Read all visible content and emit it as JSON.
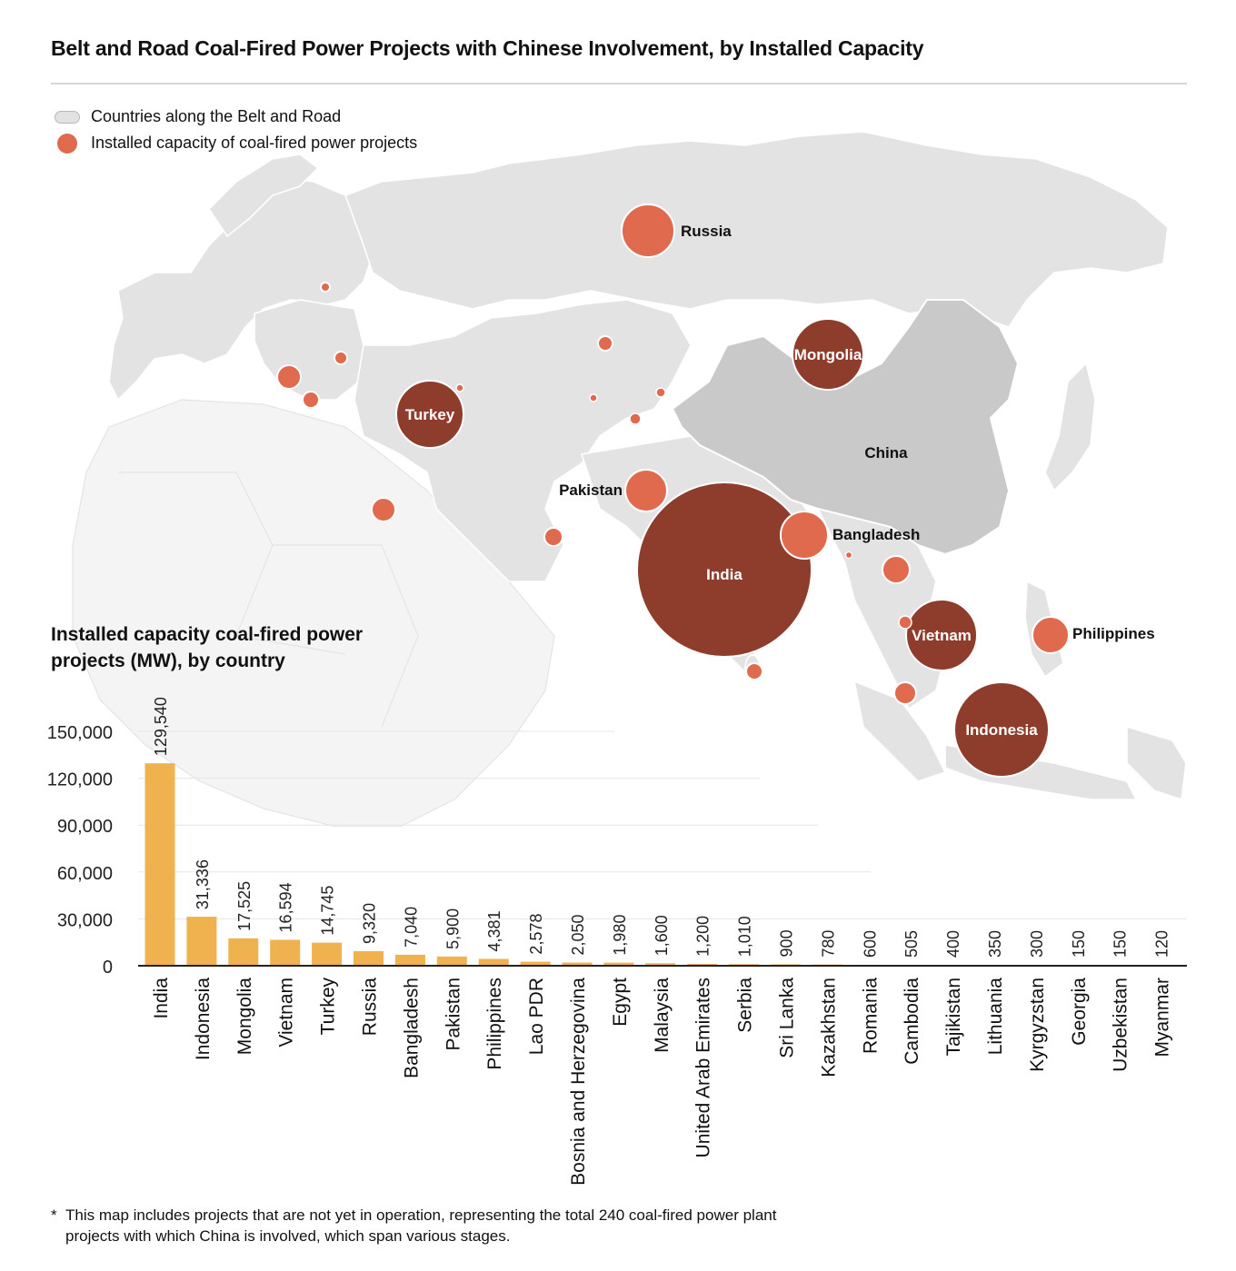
{
  "title": "Belt and Road Coal-Fired Power Projects with Chinese Involvement, by Installed Capacity",
  "legend": {
    "land": "Countries along the Belt and Road",
    "dot": "Installed capacity of coal-fired power projects"
  },
  "colors": {
    "small_bubble": "#e06a4e",
    "large_bubble": "#8e3d2c",
    "bar": "#efb24f",
    "land": "#e2e2e2",
    "china": "#c9c9ca"
  },
  "map_labels": {
    "russia": "Russia",
    "mongolia": "Mongolia",
    "turkey": "Turkey",
    "china": "China",
    "pakistan": "Pakistan",
    "india": "India",
    "bangladesh": "Bangladesh",
    "vietnam": "Vietnam",
    "philippines": "Philippines",
    "indonesia": "Indonesia"
  },
  "chart_heading": "Installed capacity coal-fired power projects (MW), by country",
  "chart_data": {
    "type": "bar",
    "title": "Installed capacity coal-fired power projects (MW), by country",
    "xlabel": "",
    "ylabel": "",
    "ylim": [
      0,
      150000
    ],
    "yticks": [
      0,
      30000,
      60000,
      90000,
      120000,
      150000
    ],
    "ytick_labels": [
      "0",
      "30,000",
      "60,000",
      "90,000",
      "120,000",
      "150,000"
    ],
    "categories": [
      "India",
      "Indonesia",
      "Mongolia",
      "Vietnam",
      "Turkey",
      "Russia",
      "Bangladesh",
      "Pakistan",
      "Philippines",
      "Lao PDR",
      "Bosnia and Herzegovina",
      "Egypt",
      "Malaysia",
      "United Arab Emirates",
      "Serbia",
      "Sri Lanka",
      "Kazakhstan",
      "Romania",
      "Cambodia",
      "Tajikistan",
      "Lithuania",
      "Kyrgyzstan",
      "Georgia",
      "Uzbekistan",
      "Myanmar"
    ],
    "values": [
      129540,
      31336,
      17525,
      16594,
      14745,
      9320,
      7040,
      5900,
      4381,
      2578,
      2050,
      1980,
      1600,
      1200,
      1010,
      900,
      780,
      600,
      505,
      400,
      350,
      300,
      150,
      150,
      120
    ],
    "value_labels": [
      "129,540",
      "31,336",
      "17,525",
      "16,594",
      "14,745",
      "9,320",
      "7,040",
      "5,900",
      "4,381",
      "2,578",
      "2,050",
      "1,980",
      "1,600",
      "1,200",
      "1,010",
      "900",
      "780",
      "600",
      "505",
      "400",
      "350",
      "300",
      "150",
      "150",
      "120"
    ]
  },
  "footnote": {
    "mark": "*",
    "text": "This map includes projects that are not yet in operation, representing the total 240 coal-fired power plant projects with which China is involved, which span various stages."
  }
}
